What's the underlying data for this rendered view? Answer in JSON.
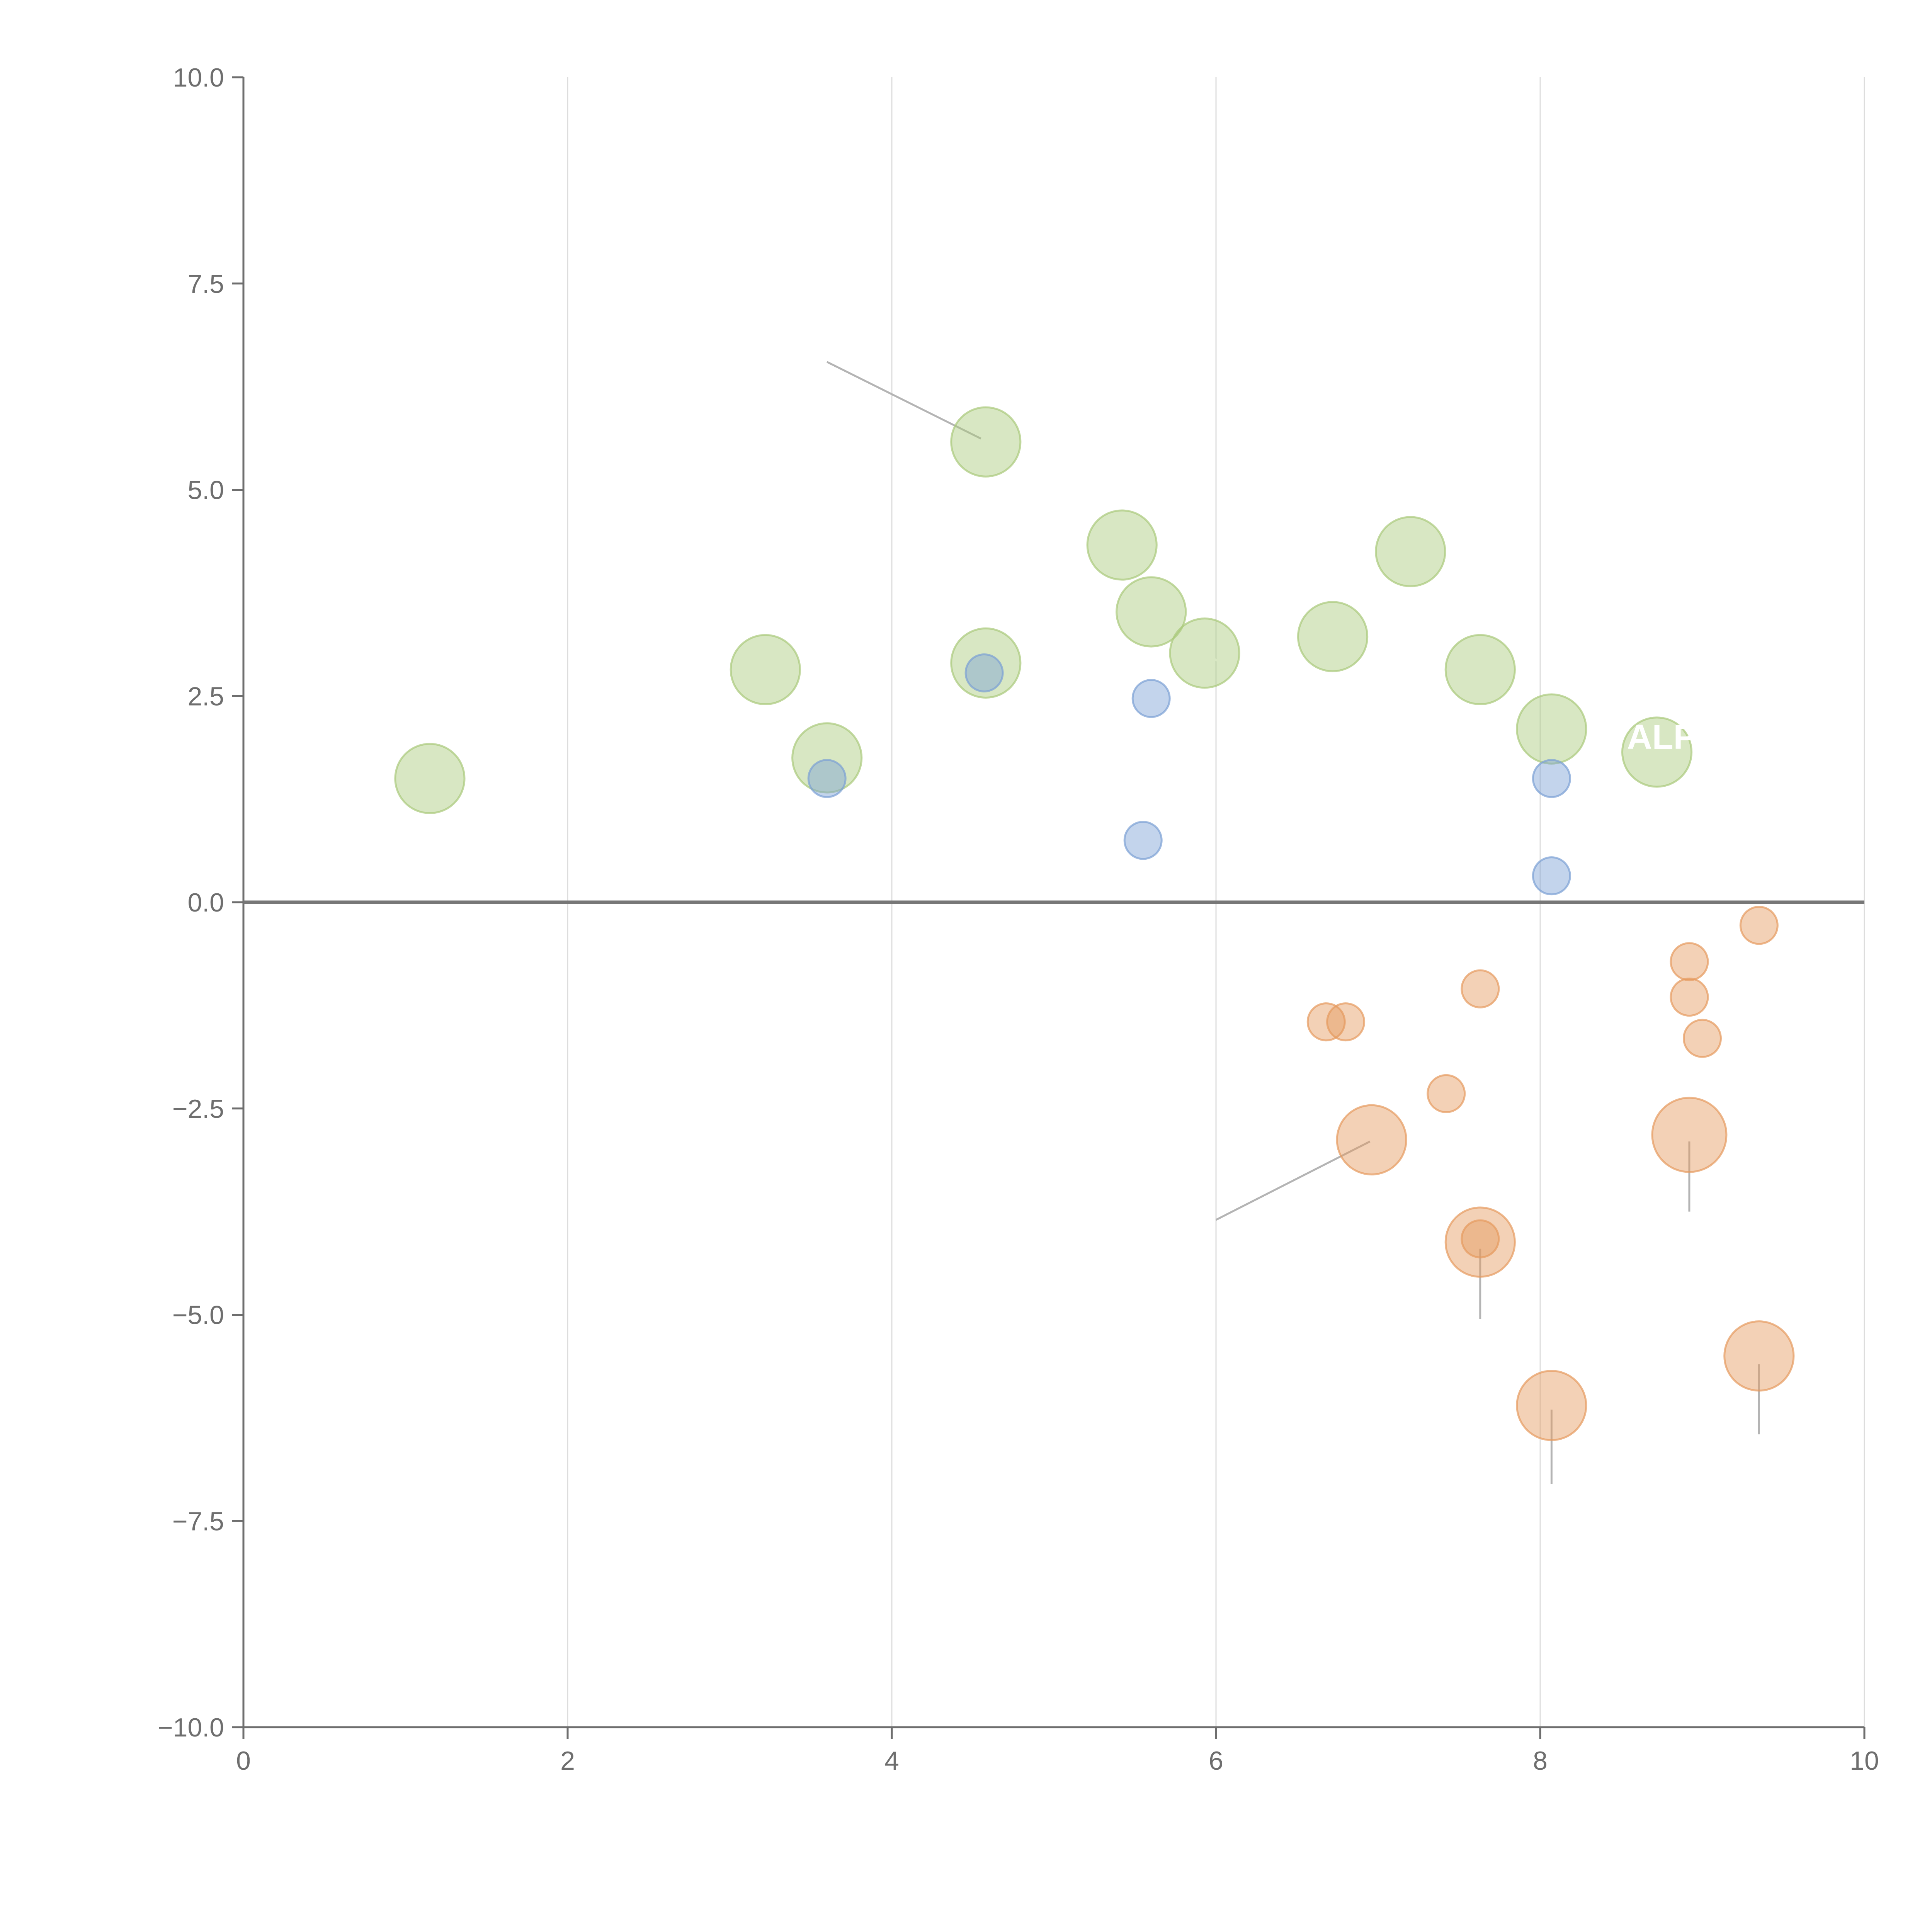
{
  "chart_data": {
    "type": "scatter",
    "title": "",
    "xlabel": "",
    "ylabel": "",
    "xlim": [
      0,
      10
    ],
    "ylim": [
      -10,
      10
    ],
    "x_ticks": [
      0,
      2,
      4,
      6,
      8,
      10
    ],
    "y_ticks": [
      -10,
      -7.5,
      -5,
      -2.5,
      0,
      2.5,
      5,
      7.5,
      10
    ],
    "x_tick_labels": [
      "0",
      "2",
      "4",
      "6",
      "8",
      "10"
    ],
    "y_tick_labels": [
      "−10.0",
      "−7.5",
      "−5.0",
      "−2.5",
      "0.0",
      "2.5",
      "5.0",
      "7.5",
      "10.0"
    ],
    "vertical_grid": true,
    "horizontal_grid": false,
    "zero_line": true,
    "series": [
      {
        "name": "green",
        "color": "#a9c97a",
        "points": [
          {
            "x": 1.15,
            "y": 1.5,
            "size": 28
          },
          {
            "x": 3.22,
            "y": 2.82,
            "size": 28
          },
          {
            "x": 3.6,
            "y": 1.75,
            "size": 28
          },
          {
            "x": 4.58,
            "y": 5.58,
            "size": 28
          },
          {
            "x": 4.58,
            "y": 2.9,
            "size": 28
          },
          {
            "x": 5.42,
            "y": 4.33,
            "size": 28
          },
          {
            "x": 5.6,
            "y": 3.52,
            "size": 28
          },
          {
            "x": 5.93,
            "y": 3.02,
            "size": 28
          },
          {
            "x": 6.72,
            "y": 3.22,
            "size": 28
          },
          {
            "x": 7.2,
            "y": 4.25,
            "size": 28
          },
          {
            "x": 7.63,
            "y": 2.82,
            "size": 28
          },
          {
            "x": 8.07,
            "y": 2.1,
            "size": 28
          },
          {
            "x": 8.72,
            "y": 1.82,
            "size": 28
          }
        ]
      },
      {
        "name": "blue",
        "color": "#7aa0d4",
        "points": [
          {
            "x": 3.6,
            "y": 1.5,
            "size": 15
          },
          {
            "x": 4.57,
            "y": 2.78,
            "size": 15
          },
          {
            "x": 5.6,
            "y": 2.47,
            "size": 15
          },
          {
            "x": 5.55,
            "y": 0.75,
            "size": 15
          },
          {
            "x": 8.07,
            "y": 1.5,
            "size": 15
          },
          {
            "x": 8.07,
            "y": 0.32,
            "size": 15
          }
        ]
      },
      {
        "name": "orange",
        "color": "#e59a5e",
        "points": [
          {
            "x": 6.68,
            "y": -1.45,
            "size": 15
          },
          {
            "x": 6.8,
            "y": -1.45,
            "size": 15
          },
          {
            "x": 7.63,
            "y": -1.05,
            "size": 15
          },
          {
            "x": 7.42,
            "y": -2.32,
            "size": 15
          },
          {
            "x": 6.96,
            "y": -2.88,
            "size": 28
          },
          {
            "x": 7.63,
            "y": -4.12,
            "size": 28
          },
          {
            "x": 7.63,
            "y": -4.08,
            "size": 15
          },
          {
            "x": 8.07,
            "y": -6.1,
            "size": 28
          },
          {
            "x": 8.92,
            "y": -0.72,
            "size": 15
          },
          {
            "x": 8.92,
            "y": -1.15,
            "size": 15
          },
          {
            "x": 9.0,
            "y": -1.65,
            "size": 15
          },
          {
            "x": 8.92,
            "y": -2.82,
            "size": 30
          },
          {
            "x": 9.35,
            "y": -0.28,
            "size": 15
          },
          {
            "x": 9.35,
            "y": -5.5,
            "size": 28
          }
        ]
      }
    ],
    "leader_lines": [
      {
        "x1": 3.6,
        "y1": 6.55,
        "x2": 4.55,
        "y2": 5.62,
        "color": "#b4b4b4"
      },
      {
        "x1": 6.0,
        "y1": -3.85,
        "x2": 6.95,
        "y2": -2.9,
        "color": "#b4b4b4"
      },
      {
        "x1": 7.63,
        "y1": -5.05,
        "x2": 7.63,
        "y2": -4.2,
        "color": "#b4b4b4"
      },
      {
        "x1": 8.07,
        "y1": -7.05,
        "x2": 8.07,
        "y2": -6.15,
        "color": "#b4b4b4"
      },
      {
        "x1": 8.92,
        "y1": -3.75,
        "x2": 8.92,
        "y2": -2.9,
        "color": "#b4b4b4"
      },
      {
        "x1": 9.35,
        "y1": -6.45,
        "x2": 9.35,
        "y2": -5.6,
        "color": "#b4b4b4"
      },
      {
        "x1": 3.25,
        "y1": 2.85,
        "x2": 3.45,
        "y2": 3.15,
        "color": "#ffffff"
      },
      {
        "x1": 3.45,
        "y1": 1.75,
        "x2": 3.62,
        "y2": 1.95,
        "color": "#ffffff"
      },
      {
        "x1": 5.42,
        "y1": 4.35,
        "x2": 5.55,
        "y2": 4.7,
        "color": "#ffffff"
      },
      {
        "x1": 5.95,
        "y1": 3.0,
        "x2": 6.15,
        "y2": 2.75,
        "color": "#ffffff"
      },
      {
        "x1": 6.7,
        "y1": 3.3,
        "x2": 6.55,
        "y2": 3.65,
        "color": "#ffffff"
      },
      {
        "x1": 7.2,
        "y1": 4.28,
        "x2": 7.42,
        "y2": 4.55,
        "color": "#ffffff"
      },
      {
        "x1": 7.66,
        "y1": 2.85,
        "x2": 7.88,
        "y2": 3.05,
        "color": "#ffffff"
      },
      {
        "x1": 8.1,
        "y1": 2.12,
        "x2": 8.45,
        "y2": 2.05,
        "color": "#ffffff"
      },
      {
        "x1": 8.75,
        "y1": 1.4,
        "x2": 8.7,
        "y2": 1.75,
        "color": "#ffffff"
      },
      {
        "x1": 4.6,
        "y1": 2.9,
        "x2": 4.7,
        "y2": 2.68,
        "color": "#ffffff"
      }
    ],
    "annotations": [
      {
        "text": "ALP",
        "x": 8.75,
        "y": 2.0
      }
    ],
    "colors": {
      "axis": "#6e6e6e",
      "grid": "#dddddd",
      "zero_line": "#777777"
    }
  }
}
